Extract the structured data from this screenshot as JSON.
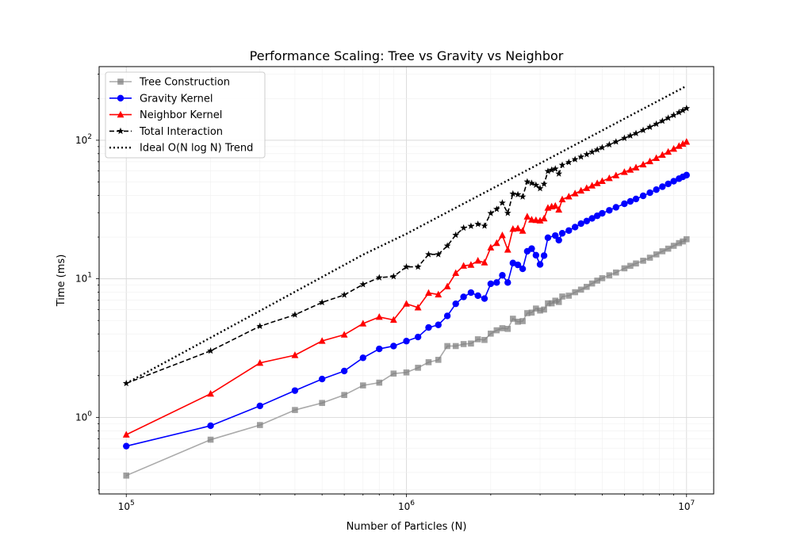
{
  "chart_data": {
    "type": "line",
    "title": "Performance Scaling: Tree vs Gravity vs Neighbor",
    "xlabel": "Number of Particles (N)",
    "ylabel": "Time (ms)",
    "x_scale": "log",
    "y_scale": "log",
    "xlim": [
      80000,
      12500000
    ],
    "ylim": [
      0.28,
      340
    ],
    "x_ticks": [
      {
        "value": 100000,
        "base": "10",
        "exp": "5"
      },
      {
        "value": 1000000,
        "base": "10",
        "exp": "6"
      },
      {
        "value": 10000000,
        "base": "10",
        "exp": "7"
      }
    ],
    "y_ticks": [
      {
        "value": 1,
        "base": "10",
        "exp": "0"
      },
      {
        "value": 10,
        "base": "10",
        "exp": "1"
      },
      {
        "value": 100,
        "base": "10",
        "exp": "2"
      }
    ],
    "grid": true,
    "legend_position": "top-left",
    "series": [
      {
        "name": "Tree Construction",
        "color": "#808080",
        "line_color": "#aaaaaa",
        "marker": "square",
        "dash": "solid",
        "points": [
          [
            100000,
            0.38
          ],
          [
            200000,
            0.69
          ],
          [
            300000,
            0.88
          ],
          [
            400000,
            1.13
          ],
          [
            500000,
            1.27
          ],
          [
            600000,
            1.45
          ],
          [
            700000,
            1.7
          ],
          [
            800000,
            1.78
          ],
          [
            900000,
            2.07
          ],
          [
            1000000,
            2.11
          ],
          [
            1100000,
            2.28
          ],
          [
            1200000,
            2.5
          ],
          [
            1300000,
            2.6
          ],
          [
            1400000,
            3.27
          ],
          [
            1500000,
            3.27
          ],
          [
            1600000,
            3.38
          ],
          [
            1700000,
            3.41
          ],
          [
            1800000,
            3.66
          ],
          [
            1900000,
            3.62
          ],
          [
            2000000,
            4.02
          ],
          [
            2100000,
            4.25
          ],
          [
            2200000,
            4.4
          ],
          [
            2300000,
            4.35
          ],
          [
            2400000,
            5.15
          ],
          [
            2500000,
            4.9
          ],
          [
            2600000,
            4.95
          ],
          [
            2700000,
            5.65
          ],
          [
            2800000,
            5.7
          ],
          [
            2900000,
            6.1
          ],
          [
            3000000,
            5.9
          ],
          [
            3100000,
            6.0
          ],
          [
            3200000,
            6.65
          ],
          [
            3300000,
            6.65
          ],
          [
            3400000,
            6.95
          ],
          [
            3500000,
            6.8
          ],
          [
            3600000,
            7.45
          ],
          [
            3800000,
            7.55
          ],
          [
            4000000,
            8.0
          ],
          [
            4200000,
            8.35
          ],
          [
            4400000,
            8.75
          ],
          [
            4600000,
            9.25
          ],
          [
            4800000,
            9.7
          ],
          [
            5000000,
            10.1
          ],
          [
            5300000,
            10.6
          ],
          [
            5600000,
            11.1
          ],
          [
            6000000,
            11.9
          ],
          [
            6300000,
            12.4
          ],
          [
            6600000,
            12.9
          ],
          [
            7000000,
            13.5
          ],
          [
            7400000,
            14.2
          ],
          [
            7800000,
            15.0
          ],
          [
            8200000,
            15.8
          ],
          [
            8600000,
            16.5
          ],
          [
            9000000,
            17.3
          ],
          [
            9400000,
            18.1
          ],
          [
            9700000,
            18.6
          ],
          [
            10000000,
            19.3
          ]
        ]
      },
      {
        "name": "Gravity Kernel",
        "color": "#0000ff",
        "line_color": "#0000ff",
        "marker": "circle",
        "dash": "solid",
        "points": [
          [
            100000,
            0.62
          ],
          [
            200000,
            0.87
          ],
          [
            300000,
            1.21
          ],
          [
            400000,
            1.56
          ],
          [
            500000,
            1.89
          ],
          [
            600000,
            2.16
          ],
          [
            700000,
            2.69
          ],
          [
            800000,
            3.12
          ],
          [
            900000,
            3.27
          ],
          [
            1000000,
            3.55
          ],
          [
            1100000,
            3.8
          ],
          [
            1200000,
            4.45
          ],
          [
            1300000,
            4.65
          ],
          [
            1400000,
            5.4
          ],
          [
            1500000,
            6.6
          ],
          [
            1600000,
            7.4
          ],
          [
            1700000,
            7.95
          ],
          [
            1800000,
            7.55
          ],
          [
            1900000,
            7.2
          ],
          [
            2000000,
            9.2
          ],
          [
            2100000,
            9.4
          ],
          [
            2200000,
            10.6
          ],
          [
            2300000,
            9.4
          ],
          [
            2400000,
            13.0
          ],
          [
            2500000,
            12.6
          ],
          [
            2600000,
            11.8
          ],
          [
            2700000,
            15.8
          ],
          [
            2800000,
            16.5
          ],
          [
            2900000,
            14.8
          ],
          [
            3000000,
            12.7
          ],
          [
            3100000,
            14.7
          ],
          [
            3200000,
            19.8
          ],
          [
            3400000,
            20.5
          ],
          [
            3500000,
            19.0
          ],
          [
            3600000,
            21.3
          ],
          [
            3800000,
            22.3
          ],
          [
            4000000,
            23.6
          ],
          [
            4200000,
            25.0
          ],
          [
            4400000,
            26.1
          ],
          [
            4600000,
            27.3
          ],
          [
            4800000,
            28.5
          ],
          [
            5000000,
            29.7
          ],
          [
            5300000,
            31.2
          ],
          [
            5600000,
            32.8
          ],
          [
            6000000,
            34.8
          ],
          [
            6300000,
            36.2
          ],
          [
            6600000,
            37.7
          ],
          [
            7000000,
            39.7
          ],
          [
            7400000,
            41.8
          ],
          [
            7800000,
            44.0
          ],
          [
            8200000,
            46.2
          ],
          [
            8600000,
            48.4
          ],
          [
            9000000,
            50.6
          ],
          [
            9400000,
            52.8
          ],
          [
            9700000,
            54.4
          ],
          [
            10000000,
            56.0
          ]
        ]
      },
      {
        "name": "Neighbor Kernel",
        "color": "#ff0000",
        "line_color": "#ff0000",
        "marker": "triangle",
        "dash": "solid",
        "points": [
          [
            100000,
            0.75
          ],
          [
            200000,
            1.48
          ],
          [
            300000,
            2.47
          ],
          [
            400000,
            2.81
          ],
          [
            500000,
            3.56
          ],
          [
            600000,
            3.95
          ],
          [
            700000,
            4.75
          ],
          [
            800000,
            5.3
          ],
          [
            900000,
            5.05
          ],
          [
            1000000,
            6.6
          ],
          [
            1100000,
            6.2
          ],
          [
            1200000,
            7.9
          ],
          [
            1300000,
            7.7
          ],
          [
            1400000,
            8.8
          ],
          [
            1500000,
            11.0
          ],
          [
            1600000,
            12.4
          ],
          [
            1700000,
            12.6
          ],
          [
            1800000,
            13.5
          ],
          [
            1900000,
            13.1
          ],
          [
            2000000,
            16.8
          ],
          [
            2100000,
            18.1
          ],
          [
            2200000,
            20.6
          ],
          [
            2300000,
            16.2
          ],
          [
            2400000,
            22.9
          ],
          [
            2500000,
            23.1
          ],
          [
            2600000,
            22.2
          ],
          [
            2700000,
            28.1
          ],
          [
            2800000,
            26.7
          ],
          [
            2900000,
            26.5
          ],
          [
            3000000,
            26.3
          ],
          [
            3100000,
            27.2
          ],
          [
            3200000,
            32.5
          ],
          [
            3300000,
            33.2
          ],
          [
            3400000,
            33.6
          ],
          [
            3500000,
            31.5
          ],
          [
            3600000,
            37.4
          ],
          [
            3800000,
            39.2
          ],
          [
            4000000,
            41.3
          ],
          [
            4200000,
            43.2
          ],
          [
            4400000,
            45.1
          ],
          [
            4600000,
            47.0
          ],
          [
            4800000,
            48.9
          ],
          [
            5000000,
            50.7
          ],
          [
            5300000,
            53.2
          ],
          [
            5600000,
            55.7
          ],
          [
            6000000,
            58.9
          ],
          [
            6300000,
            61.2
          ],
          [
            6600000,
            63.5
          ],
          [
            7000000,
            66.8
          ],
          [
            7400000,
            70.4
          ],
          [
            7800000,
            74.3
          ],
          [
            8200000,
            78.3
          ],
          [
            8600000,
            82.4
          ],
          [
            9000000,
            86.6
          ],
          [
            9400000,
            90.9
          ],
          [
            9700000,
            94.1
          ],
          [
            10000000,
            97.3
          ]
        ]
      },
      {
        "name": "Total Interaction",
        "color": "#000000",
        "line_color": "#000000",
        "marker": "star",
        "dash": "dashed",
        "points": [
          [
            100000,
            1.76
          ],
          [
            200000,
            3.02
          ],
          [
            300000,
            4.55
          ],
          [
            400000,
            5.5
          ],
          [
            500000,
            6.75
          ],
          [
            600000,
            7.65
          ],
          [
            700000,
            9.1
          ],
          [
            800000,
            10.2
          ],
          [
            900000,
            10.4
          ],
          [
            1000000,
            12.2
          ],
          [
            1100000,
            12.2
          ],
          [
            1200000,
            15.0
          ],
          [
            1300000,
            15.0
          ],
          [
            1400000,
            17.3
          ],
          [
            1500000,
            20.7
          ],
          [
            1600000,
            23.3
          ],
          [
            1700000,
            24.0
          ],
          [
            1800000,
            24.8
          ],
          [
            1900000,
            24.1
          ],
          [
            2000000,
            29.7
          ],
          [
            2100000,
            31.8
          ],
          [
            2200000,
            35.3
          ],
          [
            2300000,
            29.8
          ],
          [
            2400000,
            41.1
          ],
          [
            2500000,
            40.6
          ],
          [
            2600000,
            39.1
          ],
          [
            2700000,
            50.2
          ],
          [
            2800000,
            49.0
          ],
          [
            2900000,
            47.5
          ],
          [
            3000000,
            44.9
          ],
          [
            3100000,
            48.3
          ],
          [
            3200000,
            59.7
          ],
          [
            3300000,
            61.0
          ],
          [
            3400000,
            62.2
          ],
          [
            3500000,
            57.3
          ],
          [
            3600000,
            66.2
          ],
          [
            3800000,
            69.3
          ],
          [
            4000000,
            72.7
          ],
          [
            4200000,
            75.8
          ],
          [
            4400000,
            79.0
          ],
          [
            4600000,
            82.2
          ],
          [
            4800000,
            85.4
          ],
          [
            5000000,
            88.6
          ],
          [
            5300000,
            93.0
          ],
          [
            5600000,
            97.5
          ],
          [
            6000000,
            103.5
          ],
          [
            6300000,
            107.8
          ],
          [
            6600000,
            112.1
          ],
          [
            7000000,
            118.1
          ],
          [
            7400000,
            124.4
          ],
          [
            7800000,
            131.0
          ],
          [
            8200000,
            137.8
          ],
          [
            8600000,
            144.7
          ],
          [
            9000000,
            151.7
          ],
          [
            9400000,
            158.8
          ],
          [
            9700000,
            164.2
          ],
          [
            10000000,
            169.9
          ]
        ]
      },
      {
        "name": "Ideal O(N log N) Trend",
        "color": "#000000",
        "line_color": "#000000",
        "marker": "none",
        "dash": "dotted",
        "points": [
          [
            100000,
            1.76
          ],
          [
            200000,
            3.76
          ],
          [
            300000,
            5.87
          ],
          [
            500000,
            10.3
          ],
          [
            700000,
            14.93
          ],
          [
            1000000,
            21.12
          ],
          [
            1500000,
            32.56
          ],
          [
            2000000,
            44.2
          ],
          [
            3000000,
            68.1
          ],
          [
            5000000,
            117.7
          ],
          [
            7000000,
            168.6
          ],
          [
            10000000,
            246.5
          ]
        ]
      }
    ]
  }
}
